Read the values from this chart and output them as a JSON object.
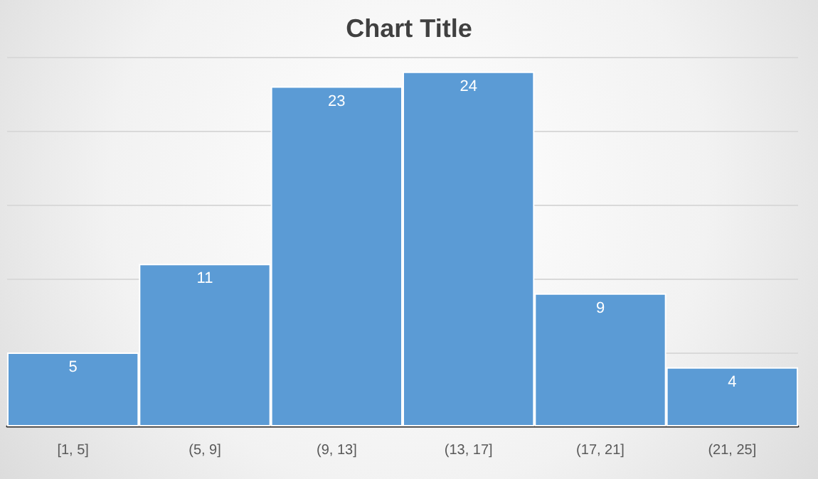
{
  "chart_data": {
    "type": "bar",
    "title": "Chart Title",
    "categories": [
      "[1, 5]",
      "(5, 9]",
      "(9, 13]",
      "(13, 17]",
      "(17, 21]",
      "(21, 25]"
    ],
    "values": [
      5,
      11,
      23,
      24,
      9,
      4
    ],
    "color": "#5b9bd5",
    "ylim": [
      0,
      25
    ],
    "yticks": [
      0,
      5,
      10,
      15,
      20,
      25
    ],
    "tick_labels": "x",
    "grid": "y",
    "data_labels": true
  }
}
